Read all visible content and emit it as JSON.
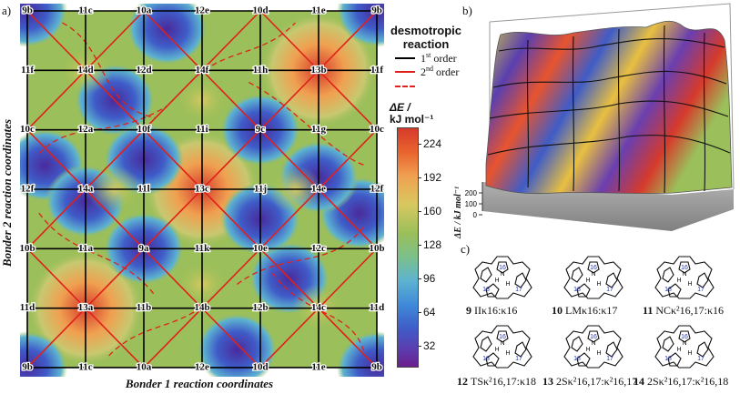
{
  "panels": {
    "a": "a)",
    "b": "b)",
    "c": "c)"
  },
  "axes": {
    "x_title": "Bonder 1 reaction coordinates",
    "y_title": "Bonder 2 reaction coordinates"
  },
  "grid": {
    "top_labels": [
      "9b",
      "11c",
      "10a",
      "12e",
      "10d",
      "11e",
      "9b"
    ],
    "bottom_labels": [
      "9b",
      "11c",
      "10a",
      "12e",
      "10d",
      "11e",
      "9b"
    ],
    "rows": [
      [
        "9b",
        "11c",
        "10a",
        "12e",
        "10d",
        "11e",
        "9b"
      ],
      [
        "11f",
        "14d",
        "12d",
        "14f",
        "11h",
        "13b",
        "11f"
      ],
      [
        "10c",
        "12a",
        "10f",
        "11i",
        "9c",
        "11g",
        "10c"
      ],
      [
        "12f",
        "14a",
        "11l",
        "13c",
        "11j",
        "14e",
        "12f"
      ],
      [
        "10b",
        "11a",
        "9a",
        "11k",
        "10e",
        "12c",
        "10b"
      ],
      [
        "11d",
        "13a",
        "11b",
        "14b",
        "12b",
        "14c",
        "11d"
      ],
      [
        "9b",
        "11c",
        "10a",
        "12e",
        "10d",
        "11e",
        "9b"
      ]
    ]
  },
  "legend": {
    "title_line1": "desmotropic",
    "title_line2": "reaction",
    "first_order_base": "1",
    "first_order_sup": "st",
    "first_order_word": " order",
    "second_order_base": "2",
    "second_order_sup": "nd",
    "second_order_word": " order"
  },
  "colorbar": {
    "title_line1": "ΔE /",
    "title_line2": "kJ mol⁻¹",
    "ticks": [
      "224",
      "192",
      "160",
      "128",
      "96",
      "64",
      "32"
    ]
  },
  "surface_axis": {
    "label": "ΔE / kJ mol⁻¹",
    "ticks": [
      "200",
      "100",
      "0"
    ]
  },
  "molecules": [
    {
      "num": "9",
      "name": "IIκ16:κ16"
    },
    {
      "num": "10",
      "name": "LMκ16:κ17"
    },
    {
      "num": "11",
      "name": "NCκ²16,17:κ16"
    },
    {
      "num": "12",
      "name": "TSκ²16,17:κ18"
    },
    {
      "num": "13",
      "name": "2Sκ²16,17:κ²16,17"
    },
    {
      "num": "14",
      "name": "2Sκ²16,17:κ²16,18"
    }
  ],
  "atom_labels": {
    "n16": "16",
    "n17": "17",
    "n18": "18",
    "n": "N",
    "h": "H"
  },
  "colors": {
    "line_first": "#000000",
    "line_second": "#e0201a",
    "bg_green": "#9bbf5a",
    "cb_top": "#d63a2b",
    "cb_bottom": "#6a1f8c"
  }
}
